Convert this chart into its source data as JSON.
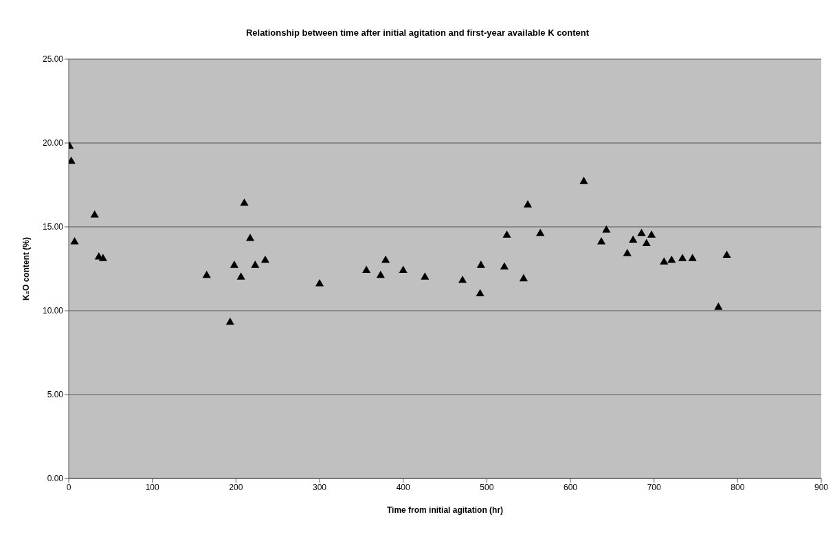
{
  "chart_data": {
    "type": "scatter",
    "title": "Relationship between time after initial agitation and first-year available K content",
    "xlabel": "Time from initial agitation (hr)",
    "ylabel": "K₂O content (%)",
    "series": [
      {
        "color": "#000000",
        "x": [
          1,
          3,
          7,
          31,
          36,
          41,
          165,
          193,
          198,
          206,
          210,
          217,
          223,
          235,
          300,
          356,
          373,
          379,
          400,
          426,
          471,
          492,
          493,
          521,
          524,
          544,
          549,
          564,
          616,
          637,
          643,
          668,
          675,
          685,
          691,
          697,
          712,
          721,
          734,
          746,
          777,
          787
        ],
        "values": [
          19.8,
          18.9,
          14.1,
          15.7,
          13.2,
          13.1,
          12.1,
          9.3,
          12.7,
          12.0,
          16.4,
          14.3,
          12.7,
          13.0,
          11.6,
          12.4,
          12.1,
          13.0,
          12.4,
          12.0,
          11.8,
          11.0,
          12.7,
          12.6,
          14.5,
          11.9,
          16.3,
          14.6,
          17.7,
          14.1,
          14.8,
          13.4,
          14.2,
          14.6,
          14.0,
          14.5,
          12.9,
          13.0,
          13.1,
          13.1,
          10.2,
          13.3
        ]
      }
    ],
    "xlim": [
      0,
      900
    ],
    "xticks": [
      0,
      100,
      200,
      300,
      400,
      500,
      600,
      700,
      800,
      900
    ],
    "ylim": [
      0,
      25
    ],
    "yticks": [
      {
        "value": 0,
        "label": "0.00"
      },
      {
        "value": 5,
        "label": "5.00"
      },
      {
        "value": 10,
        "label": "10.00"
      },
      {
        "value": 15,
        "label": "15.00"
      },
      {
        "value": 20,
        "label": "20.00"
      },
      {
        "value": 25,
        "label": "25.00"
      }
    ],
    "grid": "y",
    "marker": "triangle"
  }
}
